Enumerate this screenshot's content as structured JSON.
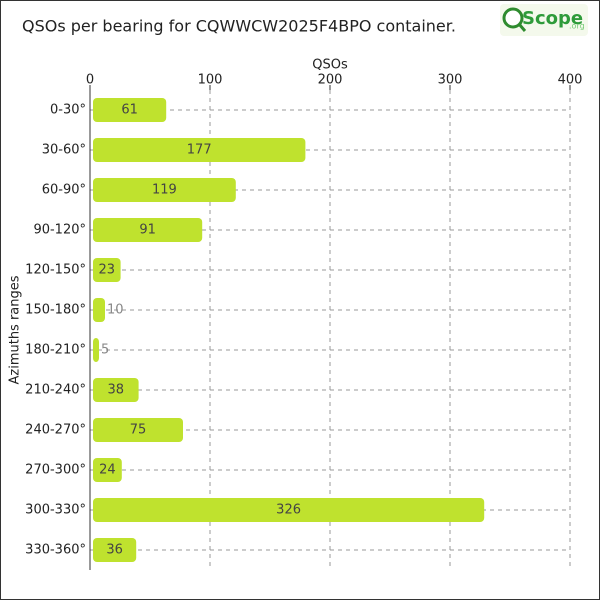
{
  "chart_data": {
    "type": "hbar",
    "title": "QSOs per bearing for CQWWCW2025F4BPO container.",
    "logo": "Scope",
    "logo_suffix": ".org",
    "x_label": "QSOs",
    "y_label": "Azimuths ranges",
    "categories": [
      "0-30°",
      "30-60°",
      "60-90°",
      "90-120°",
      "120-150°",
      "150-180°",
      "180-210°",
      "210-240°",
      "240-270°",
      "270-300°",
      "300-330°",
      "330-360°"
    ],
    "values": [
      61,
      177,
      119,
      91,
      23,
      10,
      5,
      38,
      75,
      24,
      326,
      36
    ],
    "color": "#bfe22e",
    "xlim": [
      0,
      400
    ],
    "xticks": [
      0,
      100,
      200,
      300,
      400
    ],
    "grid": true
  }
}
